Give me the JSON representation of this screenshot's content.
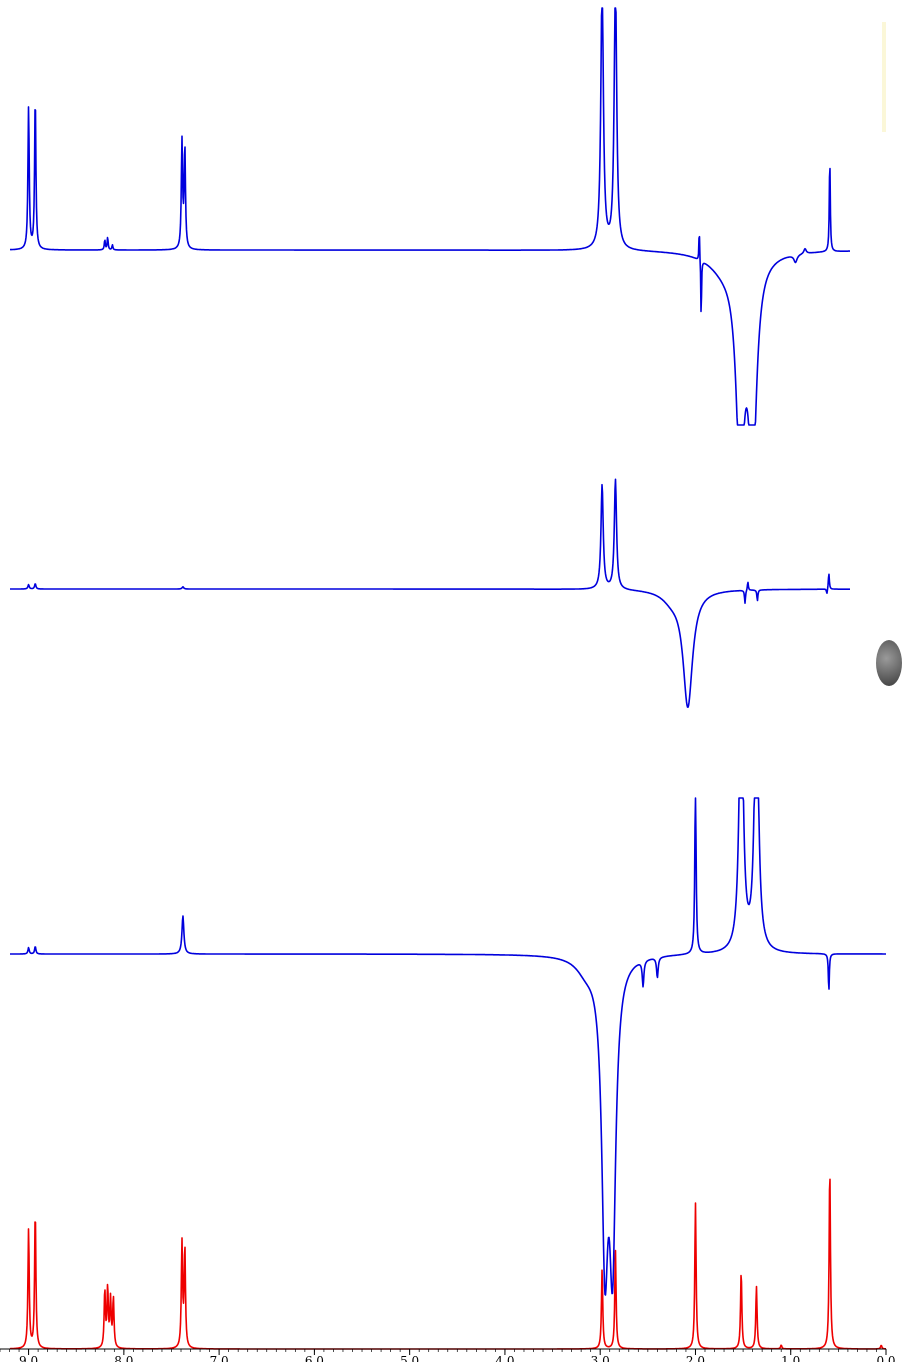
{
  "chart_data": {
    "type": "line",
    "title": "",
    "xlabel": "",
    "ylabel": "",
    "x_axis": {
      "reversed": true,
      "xlim": [
        9.3,
        0.0
      ],
      "ticks": [
        {
          "value": 9.0,
          "label": "9.0"
        },
        {
          "value": 8.0,
          "label": "8.0"
        },
        {
          "value": 7.0,
          "label": "7.0"
        },
        {
          "value": 6.0,
          "label": "6.0"
        },
        {
          "value": 5.0,
          "label": "5.0"
        },
        {
          "value": 4.0,
          "label": "4.0"
        },
        {
          "value": 3.0,
          "label": "3.0"
        },
        {
          "value": 2.0,
          "label": "2.0"
        },
        {
          "value": 1.0,
          "label": "1.0"
        },
        {
          "value": 0.0,
          "label": "0.0"
        }
      ]
    },
    "grid": false,
    "legend": "none",
    "colors": {
      "selective_trace": "#0000dd",
      "reference_trace": "#ee0000"
    },
    "series": [
      {
        "role": "selective_1",
        "color": "#0000dd",
        "x_range": [
          9.3,
          0.0
        ],
        "ylim": [
          -1.0,
          1.0
        ],
        "baseline": 0,
        "peaks": [
          {
            "x": 9.0,
            "h": 0.56,
            "w": 0.008
          },
          {
            "x": 8.93,
            "h": 0.6,
            "w": 0.008
          },
          {
            "x": 8.2,
            "h": 0.04,
            "w": 0.006
          },
          {
            "x": 8.17,
            "h": 0.05,
            "w": 0.006
          },
          {
            "x": 8.12,
            "h": 0.02,
            "w": 0.006
          },
          {
            "x": 7.39,
            "h": 0.42,
            "w": 0.008
          },
          {
            "x": 7.36,
            "h": 0.4,
            "w": 0.008
          },
          {
            "x": 2.98,
            "h": 1.05,
            "w": 0.016
          },
          {
            "x": 2.84,
            "h": 1.05,
            "w": 0.016
          },
          {
            "x": 1.96,
            "h": 0.14,
            "w": 0.004
          },
          {
            "x": 1.94,
            "h": -0.25,
            "w": 0.004
          },
          {
            "x": 1.53,
            "h": -0.8,
            "w": 0.05
          },
          {
            "x": 1.4,
            "h": -0.8,
            "w": 0.05
          },
          {
            "x": 1.7,
            "h": -0.06,
            "w": 0.2
          },
          {
            "x": 0.95,
            "h": -0.03,
            "w": 0.02
          },
          {
            "x": 0.85,
            "h": 0.02,
            "w": 0.015
          },
          {
            "x": 0.59,
            "h": 0.37,
            "w": 0.006
          }
        ]
      },
      {
        "role": "selective_2",
        "color": "#0000dd",
        "x_range": [
          9.3,
          0.0
        ],
        "ylim": [
          -1.0,
          1.0
        ],
        "baseline": 0,
        "peaks": [
          {
            "x": 9.0,
            "h": 0.04,
            "w": 0.008
          },
          {
            "x": 8.93,
            "h": 0.05,
            "w": 0.008
          },
          {
            "x": 7.38,
            "h": 0.02,
            "w": 0.01
          },
          {
            "x": 2.98,
            "h": 0.95,
            "w": 0.014
          },
          {
            "x": 2.84,
            "h": 1.0,
            "w": 0.014
          },
          {
            "x": 2.08,
            "h": -1.05,
            "w": 0.06
          },
          {
            "x": 2.25,
            "h": -0.08,
            "w": 0.12
          },
          {
            "x": 1.45,
            "h": 0.08,
            "w": 0.006
          },
          {
            "x": 1.48,
            "h": -0.12,
            "w": 0.006
          },
          {
            "x": 1.35,
            "h": -0.1,
            "w": 0.006
          },
          {
            "x": 0.6,
            "h": 0.15,
            "w": 0.006
          },
          {
            "x": 0.62,
            "h": -0.05,
            "w": 0.006
          }
        ]
      },
      {
        "role": "selective_3",
        "color": "#0000dd",
        "x_range": [
          9.3,
          0.0
        ],
        "ylim": [
          -1.0,
          1.0
        ],
        "baseline": 0,
        "peaks": [
          {
            "x": 9.0,
            "h": 0.025,
            "w": 0.008
          },
          {
            "x": 8.93,
            "h": 0.03,
            "w": 0.008
          },
          {
            "x": 7.38,
            "h": 0.15,
            "w": 0.012
          },
          {
            "x": 2.95,
            "h": -1.1,
            "w": 0.04
          },
          {
            "x": 2.87,
            "h": -1.1,
            "w": 0.04
          },
          {
            "x": 3.15,
            "h": -0.05,
            "w": 0.12
          },
          {
            "x": 2.55,
            "h": -0.1,
            "w": 0.01
          },
          {
            "x": 2.4,
            "h": -0.08,
            "w": 0.01
          },
          {
            "x": 2.0,
            "h": 0.68,
            "w": 0.008
          },
          {
            "x": 1.52,
            "h": 1.1,
            "w": 0.025
          },
          {
            "x": 1.36,
            "h": 1.1,
            "w": 0.025
          },
          {
            "x": 0.6,
            "h": -0.15,
            "w": 0.006
          }
        ]
      },
      {
        "role": "reference_1H",
        "color": "#ee0000",
        "x_range": [
          9.3,
          0.0
        ],
        "ylim": [
          0,
          1.0
        ],
        "baseline": 0,
        "peaks": [
          {
            "x": 9.0,
            "h": 0.63,
            "w": 0.008
          },
          {
            "x": 8.93,
            "h": 0.73,
            "w": 0.008
          },
          {
            "x": 8.2,
            "h": 0.3,
            "w": 0.008
          },
          {
            "x": 8.17,
            "h": 0.31,
            "w": 0.008
          },
          {
            "x": 8.14,
            "h": 0.25,
            "w": 0.008
          },
          {
            "x": 8.11,
            "h": 0.26,
            "w": 0.008
          },
          {
            "x": 7.39,
            "h": 0.55,
            "w": 0.008
          },
          {
            "x": 7.36,
            "h": 0.53,
            "w": 0.008
          },
          {
            "x": 2.98,
            "h": 0.42,
            "w": 0.008
          },
          {
            "x": 2.84,
            "h": 0.52,
            "w": 0.008
          },
          {
            "x": 2.0,
            "h": 0.77,
            "w": 0.008
          },
          {
            "x": 1.52,
            "h": 0.41,
            "w": 0.008
          },
          {
            "x": 1.36,
            "h": 0.33,
            "w": 0.008
          },
          {
            "x": 1.1,
            "h": 0.02,
            "w": 0.008
          },
          {
            "x": 0.59,
            "h": 0.96,
            "w": 0.008
          },
          {
            "x": 0.05,
            "h": 0.02,
            "w": 0.008
          }
        ]
      }
    ]
  }
}
